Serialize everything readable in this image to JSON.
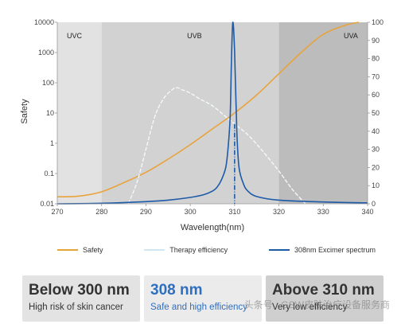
{
  "chart_data": {
    "type": "line",
    "xlabel": "Wavelength(nm)",
    "ylabel": "Safety",
    "xlim": [
      270,
      340
    ],
    "x_ticks": [
      "270",
      "280",
      "290",
      "300",
      "310",
      "320",
      "330",
      "340"
    ],
    "y_left_scale": "log",
    "y_left_ticks": [
      "0.01",
      "0.1",
      "1",
      "10",
      "100",
      "1000",
      "10000"
    ],
    "y_right_ticks": [
      "0",
      "10",
      "20",
      "30",
      "40",
      "50",
      "60",
      "70",
      "80",
      "90",
      "100"
    ],
    "regions": [
      {
        "label": "UVC",
        "from": 270,
        "to": 280,
        "color": "#e2e2e2"
      },
      {
        "label": "UVB",
        "from": 280,
        "to": 320,
        "color": "#d2d2d2"
      },
      {
        "label": "UVA",
        "from": 320,
        "to": 340,
        "color": "#bcbcbc"
      }
    ],
    "series": [
      {
        "name": "Safety",
        "axis": "left",
        "color": "#e8a33c",
        "x": [
          270,
          275,
          280,
          285,
          290,
          295,
          300,
          305,
          310,
          315,
          320,
          325,
          330,
          335,
          338
        ],
        "y": [
          0.017,
          0.018,
          0.025,
          0.05,
          0.11,
          0.3,
          0.9,
          3,
          10,
          40,
          200,
          1000,
          4000,
          8000,
          10000
        ]
      },
      {
        "name": "Therapy efficiency",
        "axis": "right",
        "color": "#dfeef7",
        "x": [
          286,
          288,
          290,
          292,
          294,
          296,
          297,
          298,
          300,
          302,
          305,
          308,
          310,
          313,
          316,
          320,
          323,
          326
        ],
        "y": [
          0,
          12,
          30,
          48,
          58,
          63,
          64,
          63,
          61,
          58,
          54,
          48,
          44,
          38,
          30,
          18,
          8,
          0
        ]
      },
      {
        "name": "308nm Excimer spectrum",
        "axis": "right",
        "color": "#1d5aa8",
        "x": [
          270,
          280,
          290,
          295,
          300,
          303,
          305,
          306,
          307,
          308,
          308.5,
          309,
          309.3,
          309.6,
          310,
          310.5,
          311,
          312,
          313,
          315,
          320,
          330,
          340
        ],
        "y": [
          0,
          0.3,
          1.2,
          2,
          3.5,
          5,
          7,
          9,
          13,
          20,
          30,
          48,
          80,
          100,
          84,
          40,
          20,
          11,
          7,
          4,
          2,
          1,
          0.5
        ]
      }
    ],
    "annotations": [
      {
        "type": "dash-dot vertical line",
        "x": 310,
        "color": "#1d5aa8"
      }
    ],
    "grid": false,
    "legend_position": "bottom"
  },
  "legend": [
    {
      "label": "Safety",
      "color": "#e8a33c"
    },
    {
      "label": "Therapy efficiency",
      "color": "#cfe6f3"
    },
    {
      "label": "308nm Excimer spectrum",
      "color": "#1d5aa8"
    }
  ],
  "panels": [
    {
      "title": "Below 300 nm",
      "subtitle": "High risk of skin cancer",
      "bg": "#e3e3e3",
      "title_color": "#333333",
      "sub_color": "#333333"
    },
    {
      "title": "308 nm",
      "subtitle": "Safe and high efficiency",
      "bg": "#ebebeb",
      "title_color": "#2f6fc0",
      "sub_color": "#2f6fc0"
    },
    {
      "title": "Above 310 nm",
      "subtitle": "Very low efficiency",
      "bg": "#cfcfcf",
      "title_color": "#333333",
      "sub_color": "#333333"
    }
  ],
  "watermark": "头条号 · GSW皮肤治疗设备服务商"
}
